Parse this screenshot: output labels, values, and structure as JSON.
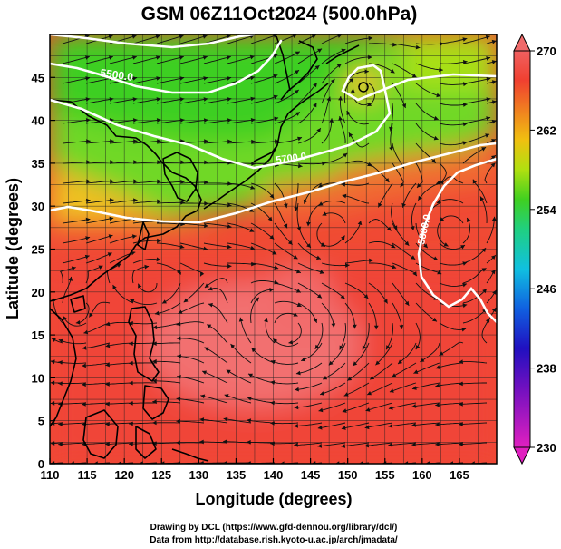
{
  "title": "GSM 06Z11Oct2024 (500.0hPa)",
  "x_axis": {
    "label": "Longitude (degrees)",
    "min": 110,
    "max": 170,
    "ticks": [
      "110",
      "115",
      "120",
      "125",
      "130",
      "135",
      "140",
      "145",
      "150",
      "155",
      "160",
      "165"
    ],
    "tick_values": [
      110,
      115,
      120,
      125,
      130,
      135,
      140,
      145,
      150,
      155,
      160,
      165
    ]
  },
  "y_axis": {
    "label": "Latitude  (degrees)",
    "min": 0,
    "max": 50,
    "ticks": [
      "0",
      "5",
      "10",
      "15",
      "20",
      "25",
      "30",
      "35",
      "40",
      "45"
    ],
    "tick_values": [
      0,
      5,
      10,
      15,
      20,
      25,
      30,
      35,
      40,
      45
    ]
  },
  "colorbar": {
    "min": 230,
    "max": 270,
    "labels": [
      "270",
      "262",
      "254",
      "246",
      "238",
      "230"
    ],
    "label_values": [
      270,
      262,
      254,
      246,
      238,
      230
    ],
    "stops": [
      {
        "value": 230,
        "color": "#e020c0"
      },
      {
        "value": 236,
        "color": "#7010c0"
      },
      {
        "value": 240,
        "color": "#2010c0"
      },
      {
        "value": 244,
        "color": "#1060e0"
      },
      {
        "value": 248,
        "color": "#10c0e0"
      },
      {
        "value": 252,
        "color": "#20d080"
      },
      {
        "value": 255,
        "color": "#40d020"
      },
      {
        "value": 258,
        "color": "#b0e010"
      },
      {
        "value": 261,
        "color": "#f0c010"
      },
      {
        "value": 264,
        "color": "#f08020"
      },
      {
        "value": 267,
        "color": "#f04030"
      },
      {
        "value": 270,
        "color": "#f06060"
      }
    ]
  },
  "contours": [
    {
      "label": "5500.0",
      "value": 5500
    },
    {
      "label": "5700.0",
      "value": 5700
    },
    {
      "label": "5880.0",
      "value": 5880
    }
  ],
  "credits": {
    "line1": "Drawing by DCL (https://www.gfd-dennou.org/library/dcl/)",
    "line2": "Data from http://database.rish.kyoto-u.ac.jp/arch/jmadata/"
  }
}
